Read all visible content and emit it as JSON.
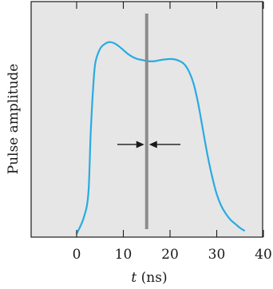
{
  "chart_data": {
    "type": "line",
    "title": "",
    "xlabel_italic": "t",
    "xlabel_unit": "(ns)",
    "ylabel": "Pulse amplitude",
    "xlim": [
      -10,
      40
    ],
    "ylim": [
      0,
      1
    ],
    "x_ticks": [
      0,
      10,
      20,
      30,
      40
    ],
    "x_tick_labels": [
      "0",
      "10",
      "20",
      "30",
      "40"
    ],
    "grid": false,
    "series": [
      {
        "name": "",
        "x": [
          0,
          1.5,
          2.5,
          3,
          3.5,
          4,
          5,
          6,
          7,
          8,
          9,
          10,
          11,
          12,
          13,
          14,
          15,
          16,
          17,
          18,
          19,
          20,
          21,
          22,
          23,
          24,
          25,
          26,
          27,
          28,
          29,
          30,
          31,
          32,
          33,
          34,
          35,
          36
        ],
        "y": [
          0.0,
          0.08,
          0.2,
          0.5,
          0.72,
          0.86,
          0.93,
          0.955,
          0.965,
          0.96,
          0.945,
          0.925,
          0.905,
          0.89,
          0.88,
          0.875,
          0.87,
          0.868,
          0.87,
          0.875,
          0.878,
          0.88,
          0.878,
          0.87,
          0.855,
          0.82,
          0.76,
          0.66,
          0.53,
          0.4,
          0.29,
          0.2,
          0.14,
          0.1,
          0.07,
          0.05,
          0.03,
          0.015
        ]
      }
    ],
    "marker_line_x": 15,
    "arrow_y": 0.45,
    "colors": {
      "pulse": "#29abe2",
      "marker_line": "#8c8c8c",
      "plot_background": "#e6e6e6",
      "frame": "#1a1a1a",
      "arrows": "#1a1a1a"
    }
  }
}
